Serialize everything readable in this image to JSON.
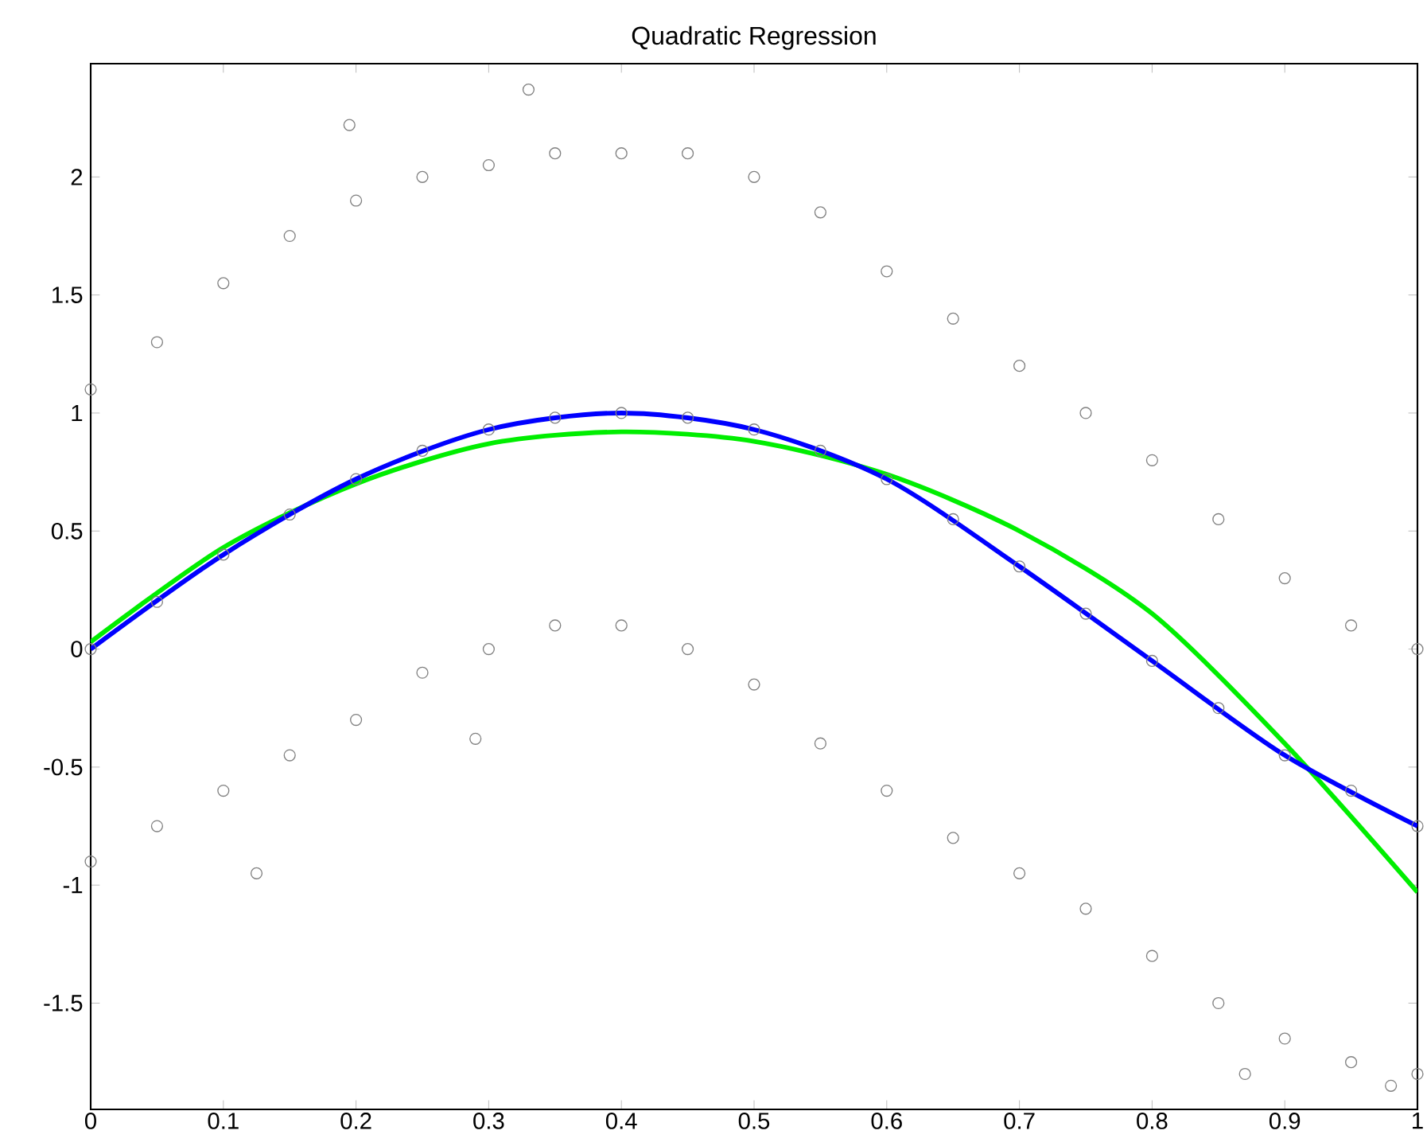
{
  "chart_data": {
    "type": "scatter",
    "title": "Quadratic Regression",
    "grid": false,
    "xlim": [
      0,
      1
    ],
    "ylim": [
      -1.95,
      2.48
    ],
    "xticks": [
      0,
      0.1,
      0.2,
      0.3,
      0.4,
      0.5,
      0.6,
      0.7,
      0.8,
      0.9,
      1
    ],
    "yticks": [
      -1.5,
      -1,
      -0.5,
      0,
      0.5,
      1,
      1.5,
      2
    ],
    "series": [
      {
        "marker": "circle",
        "color": "#808080",
        "x": [
          0,
          0.05,
          0.1,
          0.15,
          0.2,
          0.25,
          0.3,
          0.35,
          0.4,
          0.45,
          0.5,
          0.55,
          0.6,
          0.65,
          0.7,
          0.75,
          0.8,
          0.85,
          0.9,
          0.95,
          1,
          0,
          0.05,
          0.1,
          0.15,
          0.2,
          0.25,
          0.3,
          0.35,
          0.4,
          0.45,
          0.5,
          0.55,
          0.6,
          0.65,
          0.7,
          0.75,
          0.8,
          0.85,
          0.9,
          0.95,
          1,
          0,
          0.05,
          0.1,
          0.15,
          0.2,
          0.25,
          0.3,
          0.35,
          0.4,
          0.45,
          0.5,
          0.55,
          0.6,
          0.65,
          0.7,
          0.75,
          0.8,
          0.85,
          0.9,
          0.95,
          1,
          0.33,
          0.195,
          0.125,
          0.29,
          0.87,
          0.98
        ],
        "values": [
          1.1,
          1.3,
          1.55,
          1.75,
          1.9,
          2.0,
          2.05,
          2.1,
          2.1,
          2.1,
          2.0,
          1.85,
          1.6,
          1.4,
          1.2,
          1.0,
          0.8,
          0.55,
          0.3,
          0.1,
          0.0,
          -0.9,
          -0.75,
          -0.6,
          -0.45,
          -0.3,
          -0.1,
          0.0,
          0.1,
          0.1,
          0.0,
          -0.15,
          -0.4,
          -0.6,
          -0.8,
          -0.95,
          -1.1,
          -1.3,
          -1.5,
          -1.65,
          -1.75,
          -1.8,
          0.0,
          0.2,
          0.4,
          0.57,
          0.72,
          0.84,
          0.93,
          0.98,
          1.0,
          0.98,
          0.93,
          0.84,
          0.72,
          0.55,
          0.35,
          0.15,
          -0.05,
          -0.25,
          -0.45,
          -0.6,
          -0.75,
          2.37,
          2.22,
          -0.95,
          -0.38,
          -1.8,
          -1.85
        ]
      },
      {
        "type": "line",
        "marker": "none",
        "color": "#00ee00",
        "x": [
          0,
          0.1,
          0.2,
          0.3,
          0.4,
          0.5,
          0.6,
          0.7,
          0.8,
          0.9,
          1
        ],
        "values": [
          0.03,
          0.43,
          0.7,
          0.87,
          0.92,
          0.88,
          0.74,
          0.5,
          0.15,
          -0.4,
          -1.03
        ]
      },
      {
        "type": "line",
        "marker": "none",
        "color": "#0000ff",
        "x": [
          0,
          0.1,
          0.2,
          0.3,
          0.4,
          0.5,
          0.6,
          0.7,
          0.8,
          0.9,
          1
        ],
        "values": [
          0,
          0.4,
          0.72,
          0.93,
          1.0,
          0.93,
          0.72,
          0.35,
          -0.05,
          -0.45,
          -0.75
        ]
      }
    ]
  }
}
